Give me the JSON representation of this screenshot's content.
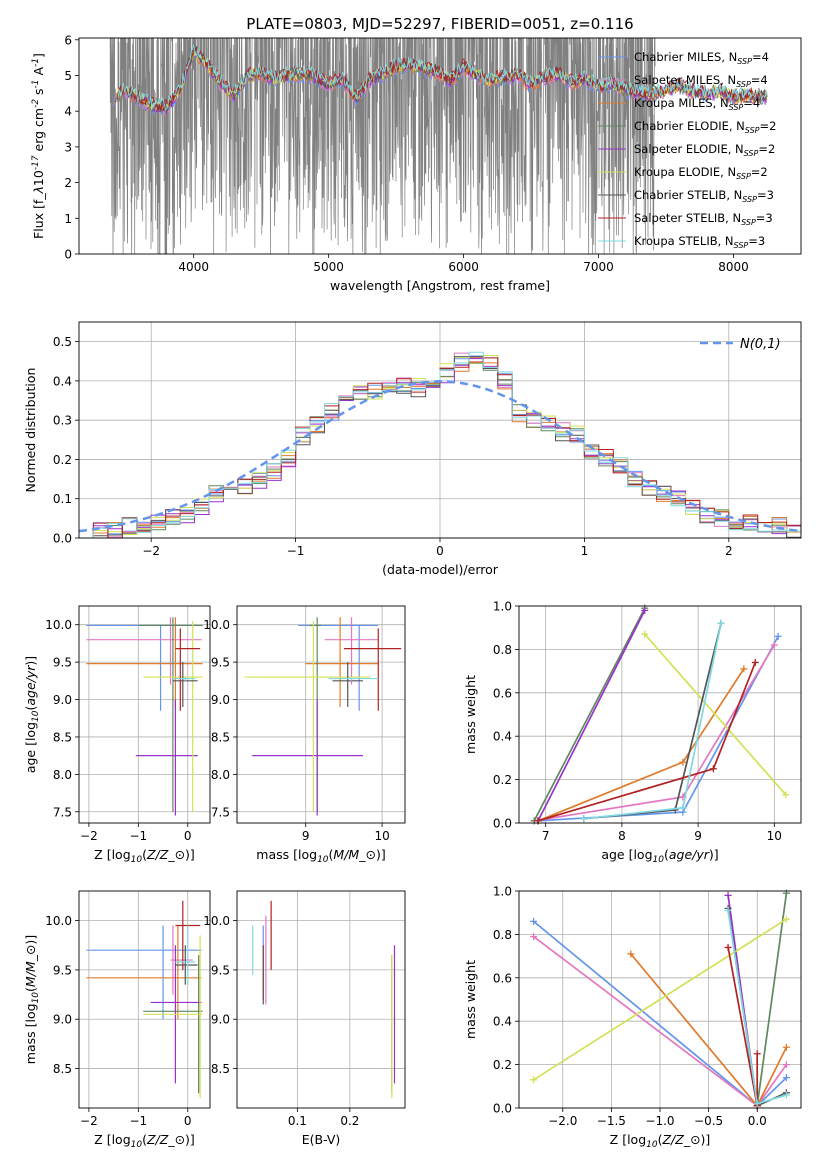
{
  "title": "PLATE=0803, MJD=52297, FIBERID=0051, z=0.116",
  "colors": {
    "grid": "#b0b0b0",
    "observed": "#808080",
    "models": [
      "#6495ed",
      "#e377c2",
      "#e07b2c",
      "#5f8a5f",
      "#9932cc",
      "#d4e157",
      "#555555",
      "#b22222",
      "#80d8e0"
    ]
  },
  "models": [
    {
      "label": "Chabrier MILES, N$_{SSP}$=4",
      "lib": "MILES",
      "imf": "Chabrier"
    },
    {
      "label": "Salpeter MILES, N$_{SSP}$=4",
      "lib": "MILES",
      "imf": "Salpeter"
    },
    {
      "label": "Kroupa MILES, N$_{SSP}$=4",
      "lib": "MILES",
      "imf": "Kroupa"
    },
    {
      "label": "Chabrier ELODIE, N$_{SSP}$=2",
      "lib": "ELODIE",
      "imf": "Chabrier"
    },
    {
      "label": "Salpeter ELODIE, N$_{SSP}$=2",
      "lib": "ELODIE",
      "imf": "Salpeter"
    },
    {
      "label": "Kroupa ELODIE, N$_{SSP}$=2",
      "lib": "ELODIE",
      "imf": "Kroupa"
    },
    {
      "label": "Chabrier STELIB, N$_{SSP}$=3",
      "lib": "STELIB",
      "imf": "Chabrier"
    },
    {
      "label": "Salpeter STELIB, N$_{SSP}$=3",
      "lib": "STELIB",
      "imf": "Salpeter"
    },
    {
      "label": "Kroupa STELIB, N$_{SSP}$=3",
      "lib": "STELIB",
      "imf": "Kroupa"
    }
  ],
  "chart_data": [
    {
      "id": "spectrum",
      "type": "line",
      "xlabel": "wavelength [Angstrom, rest frame]",
      "ylabel": "Flux [f$_\\lambda$10$^{-17}$ erg cm$^{-2}$ s$^{-1}$ A$^{-1}$]",
      "xlim": [
        3150,
        8500
      ],
      "ylim": [
        0,
        6.05
      ],
      "xticks": [
        4000,
        5000,
        6000,
        7000,
        8000
      ],
      "yticks": [
        0,
        1,
        2,
        3,
        4,
        5,
        6
      ],
      "grid": false,
      "legend": "right",
      "observed_range": [
        3380,
        7420
      ],
      "model_range": [
        3400,
        8250
      ],
      "continuum": [
        [
          3400,
          4.4
        ],
        [
          3500,
          4.55
        ],
        [
          3600,
          4.35
        ],
        [
          3700,
          4.15
        ],
        [
          3800,
          4.1
        ],
        [
          3900,
          4.6
        ],
        [
          4000,
          5.7
        ],
        [
          4100,
          5.3
        ],
        [
          4200,
          4.8
        ],
        [
          4300,
          4.45
        ],
        [
          4400,
          5.0
        ],
        [
          4500,
          5.05
        ],
        [
          4600,
          4.9
        ],
        [
          4700,
          5.0
        ],
        [
          4800,
          5.05
        ],
        [
          4900,
          4.95
        ],
        [
          5000,
          4.75
        ],
        [
          5100,
          4.9
        ],
        [
          5200,
          4.35
        ],
        [
          5300,
          4.85
        ],
        [
          5400,
          5.05
        ],
        [
          5500,
          5.25
        ],
        [
          5600,
          5.3
        ],
        [
          5700,
          5.2
        ],
        [
          5800,
          5.1
        ],
        [
          5900,
          4.85
        ],
        [
          6000,
          5.25
        ],
        [
          6100,
          5.0
        ],
        [
          6200,
          4.85
        ],
        [
          6300,
          4.95
        ],
        [
          6400,
          5.0
        ],
        [
          6500,
          4.75
        ],
        [
          6600,
          4.95
        ],
        [
          6700,
          5.05
        ],
        [
          6800,
          4.8
        ],
        [
          6900,
          4.9
        ],
        [
          7000,
          4.7
        ],
        [
          7100,
          4.75
        ],
        [
          7200,
          4.6
        ],
        [
          7300,
          4.5
        ],
        [
          7400,
          4.45
        ],
        [
          7500,
          4.6
        ],
        [
          7600,
          4.7
        ],
        [
          7700,
          4.55
        ],
        [
          7800,
          4.5
        ],
        [
          7900,
          4.55
        ],
        [
          8000,
          4.4
        ],
        [
          8100,
          4.45
        ],
        [
          8250,
          4.4
        ]
      ]
    },
    {
      "id": "residuals",
      "type": "line",
      "xlabel": "(data-model)/error",
      "ylabel": "Normed distribution",
      "xlim": [
        -2.5,
        2.5
      ],
      "ylim": [
        0,
        0.55
      ],
      "xticks": [
        -2,
        -1,
        0,
        1,
        2
      ],
      "yticks": [
        0.0,
        0.1,
        0.2,
        0.3,
        0.4,
        0.5
      ],
      "grid": true,
      "legend": "top-right",
      "legend_entry": "$\\mathcal{N}(0,1)$",
      "bins": [
        -2.5,
        -2.4,
        -2.3,
        -2.2,
        -2.1,
        -2.0,
        -1.9,
        -1.8,
        -1.7,
        -1.6,
        -1.5,
        -1.4,
        -1.3,
        -1.2,
        -1.1,
        -1.0,
        -0.9,
        -0.8,
        -0.7,
        -0.6,
        -0.5,
        -0.4,
        -0.3,
        -0.2,
        -0.1,
        0.0,
        0.1,
        0.2,
        0.3,
        0.4,
        0.5,
        0.6,
        0.7,
        0.8,
        0.9,
        1.0,
        1.1,
        1.2,
        1.3,
        1.4,
        1.5,
        1.6,
        1.7,
        1.8,
        1.9,
        2.0,
        2.1,
        2.2,
        2.3,
        2.4,
        2.5
      ],
      "histogram": [
        0.01,
        0.02,
        0.02,
        0.03,
        0.03,
        0.04,
        0.05,
        0.06,
        0.08,
        0.11,
        0.12,
        0.13,
        0.15,
        0.17,
        0.2,
        0.26,
        0.29,
        0.32,
        0.35,
        0.37,
        0.37,
        0.38,
        0.39,
        0.38,
        0.37,
        0.42,
        0.45,
        0.46,
        0.44,
        0.4,
        0.32,
        0.3,
        0.29,
        0.27,
        0.26,
        0.22,
        0.2,
        0.18,
        0.15,
        0.13,
        0.11,
        0.1,
        0.08,
        0.06,
        0.05,
        0.04,
        0.04,
        0.03,
        0.03,
        0.02
      ]
    },
    {
      "id": "age_vs_Z",
      "type": "scatter",
      "xlabel": "Z [log$_{10}$($Z/Z_\\odot$)]",
      "ylabel": "age  [log$_{10}$($age/yr$)]",
      "xlim": [
        -2.2,
        0.45
      ],
      "ylim": [
        7.35,
        10.25
      ],
      "xticks": [
        -2,
        -1,
        0
      ],
      "yticks": [
        7.5,
        8.0,
        8.5,
        9.0,
        9.5,
        10.0
      ],
      "grid": true,
      "points": [
        {
          "m": 0,
          "x": -0.55,
          "y": 9.99,
          "xe": [
            -2.05,
            0.3
          ],
          "ye": [
            8.85,
            10.0
          ]
        },
        {
          "m": 1,
          "x": -0.35,
          "y": 9.8,
          "xe": [
            -2.05,
            0.28
          ],
          "ye": [
            9.2,
            10.1
          ]
        },
        {
          "m": 2,
          "x": -0.25,
          "y": 9.48,
          "xe": [
            -2.05,
            0.3
          ],
          "ye": [
            8.9,
            10.1
          ]
        },
        {
          "m": 3,
          "x": -0.3,
          "y": 9.99,
          "xe": [
            -1.0,
            0.3
          ],
          "ye": [
            7.5,
            10.1
          ]
        },
        {
          "m": 4,
          "x": -0.25,
          "y": 8.25,
          "xe": [
            -1.05,
            0.2
          ],
          "ye": [
            7.45,
            9.0
          ]
        },
        {
          "m": 5,
          "x": 0.1,
          "y": 9.3,
          "xe": [
            -0.9,
            0.3
          ],
          "ye": [
            7.5,
            10.05
          ]
        },
        {
          "m": 6,
          "x": -0.1,
          "y": 9.25,
          "xe": [
            -0.3,
            0.2
          ],
          "ye": [
            8.9,
            9.5
          ]
        },
        {
          "m": 7,
          "x": -0.15,
          "y": 9.68,
          "xe": [
            -0.25,
            0.25
          ],
          "ye": [
            8.85,
            9.95
          ]
        },
        {
          "m": 8,
          "x": -0.05,
          "y": 9.28,
          "xe": [
            -0.3,
            0.15
          ],
          "ye": [
            9.25,
            9.3
          ]
        }
      ]
    },
    {
      "id": "age_vs_mass",
      "type": "scatter",
      "xlabel": "mass [log$_{10}$($M/M_\\odot$)]",
      "ylabel": "",
      "xlim": [
        8.1,
        10.3
      ],
      "ylim": [
        7.35,
        10.25
      ],
      "xticks": [
        9,
        10
      ],
      "yticks": [
        7.5,
        8.0,
        8.5,
        9.0,
        9.5,
        10.0
      ],
      "grid": true,
      "points": [
        {
          "m": 0,
          "x": 9.7,
          "y": 9.99,
          "xe": [
            8.9,
            9.95
          ],
          "ye": [
            8.85,
            10.0
          ]
        },
        {
          "m": 1,
          "x": 9.6,
          "y": 9.8,
          "xe": [
            9.25,
            9.95
          ],
          "ye": [
            9.2,
            10.1
          ]
        },
        {
          "m": 2,
          "x": 9.45,
          "y": 9.48,
          "xe": [
            9.0,
            9.95
          ],
          "ye": [
            8.9,
            10.1
          ]
        },
        {
          "m": 3,
          "x": 9.15,
          "y": 9.99,
          "xe": [
            9.05,
            9.2
          ],
          "ye": [
            7.5,
            10.1
          ]
        },
        {
          "m": 4,
          "x": 9.15,
          "y": 8.25,
          "xe": [
            8.3,
            9.75
          ],
          "ye": [
            7.45,
            9.0
          ]
        },
        {
          "m": 5,
          "x": 9.1,
          "y": 9.3,
          "xe": [
            8.2,
            9.85
          ],
          "ye": [
            7.5,
            10.05
          ]
        },
        {
          "m": 6,
          "x": 9.55,
          "y": 9.25,
          "xe": [
            9.35,
            9.75
          ],
          "ye": [
            8.9,
            9.5
          ]
        },
        {
          "m": 7,
          "x": 9.95,
          "y": 9.68,
          "xe": [
            9.5,
            10.25
          ],
          "ye": [
            8.85,
            9.95
          ]
        },
        {
          "m": 8,
          "x": 9.6,
          "y": 9.28,
          "xe": [
            9.3,
            9.95
          ],
          "ye": [
            9.25,
            9.3
          ]
        }
      ]
    },
    {
      "id": "mw_vs_age",
      "type": "line",
      "xlabel": "age  [log$_{10}$($age/yr$)]",
      "ylabel": "mass weight",
      "xlim": [
        6.65,
        10.35
      ],
      "ylim": [
        0.0,
        1.0
      ],
      "xticks": [
        7,
        8,
        9,
        10
      ],
      "yticks": [
        0.0,
        0.2,
        0.4,
        0.6,
        0.8,
        1.0
      ],
      "grid": true,
      "series": [
        {
          "m": 0,
          "x": [
            6.9,
            8.8,
            10.05
          ],
          "y": [
            0.01,
            0.05,
            0.86
          ]
        },
        {
          "m": 1,
          "x": [
            6.85,
            8.8,
            10.0
          ],
          "y": [
            0.01,
            0.12,
            0.82
          ]
        },
        {
          "m": 2,
          "x": [
            6.9,
            8.8,
            9.6
          ],
          "y": [
            0.01,
            0.28,
            0.71
          ]
        },
        {
          "m": 3,
          "x": [
            6.85,
            8.3
          ],
          "y": [
            0.01,
            0.99
          ]
        },
        {
          "m": 4,
          "x": [
            6.9,
            8.3
          ],
          "y": [
            0.01,
            0.98
          ]
        },
        {
          "m": 5,
          "x": [
            8.3,
            10.15
          ],
          "y": [
            0.87,
            0.13
          ]
        },
        {
          "m": 6,
          "x": [
            7.5,
            8.7,
            9.3
          ],
          "y": [
            0.02,
            0.06,
            0.92
          ]
        },
        {
          "m": 7,
          "x": [
            6.9,
            9.2,
            9.75
          ],
          "y": [
            0.01,
            0.25,
            0.74
          ]
        },
        {
          "m": 8,
          "x": [
            7.5,
            8.8,
            9.3
          ],
          "y": [
            0.02,
            0.07,
            0.92
          ]
        }
      ]
    },
    {
      "id": "mass_vs_Z",
      "type": "scatter",
      "xlabel": "Z [log$_{10}$($Z/Z_\\odot$)]",
      "ylabel": "mass [log$_{10}$($M/M_\\odot$)]",
      "xlim": [
        -2.2,
        0.45
      ],
      "ylim": [
        8.1,
        10.3
      ],
      "xticks": [
        -2,
        -1,
        0
      ],
      "yticks": [
        8.5,
        9.0,
        9.5,
        10.0
      ],
      "grid": true,
      "points": [
        {
          "m": 0,
          "x": -0.5,
          "y": 9.7,
          "xe": [
            -2.05,
            0.28
          ],
          "ye": [
            9.0,
            9.95
          ]
        },
        {
          "m": 1,
          "x": -0.3,
          "y": 9.6,
          "xe": [
            -0.35,
            0.1
          ],
          "ye": [
            9.25,
            9.95
          ]
        },
        {
          "m": 2,
          "x": -0.2,
          "y": 9.42,
          "xe": [
            -2.05,
            0.28
          ],
          "ye": [
            9.0,
            9.95
          ]
        },
        {
          "m": 3,
          "x": 0.22,
          "y": 9.08,
          "xe": [
            -0.9,
            0.3
          ],
          "ye": [
            8.25,
            9.65
          ]
        },
        {
          "m": 4,
          "x": -0.25,
          "y": 9.17,
          "xe": [
            -0.75,
            0.28
          ],
          "ye": [
            8.35,
            9.75
          ]
        },
        {
          "m": 5,
          "x": 0.25,
          "y": 9.05,
          "xe": [
            -0.9,
            0.3
          ],
          "ye": [
            8.2,
            9.85
          ]
        },
        {
          "m": 6,
          "x": -0.05,
          "y": 9.55,
          "xe": [
            -0.25,
            0.2
          ],
          "ye": [
            9.35,
            9.75
          ]
        },
        {
          "m": 7,
          "x": -0.1,
          "y": 9.95,
          "xe": [
            -0.25,
            0.25
          ],
          "ye": [
            9.5,
            10.2
          ]
        },
        {
          "m": 8,
          "x": 0.0,
          "y": 9.58,
          "xe": [
            -0.25,
            0.15
          ],
          "ye": [
            9.35,
            9.95
          ]
        }
      ]
    },
    {
      "id": "mass_vs_EBV",
      "type": "scatter",
      "xlabel": "E(B-V)",
      "ylabel": "",
      "xlim": [
        -0.015,
        0.305
      ],
      "ylim": [
        8.1,
        10.3
      ],
      "xticks": [
        0.1,
        0.2
      ],
      "yticks": [
        8.5,
        9.0,
        9.5,
        10.0
      ],
      "grid": true,
      "points": [
        {
          "m": 0,
          "x": 0.035,
          "y": 9.7,
          "ye": [
            9.2,
            9.95
          ]
        },
        {
          "m": 1,
          "x": 0.04,
          "y": 9.6,
          "ye": [
            9.15,
            10.05
          ]
        },
        {
          "m": 2,
          "x": 0.035,
          "y": 9.42,
          "ye": [
            9.2,
            9.75
          ]
        },
        {
          "m": 3,
          "x": 0.28,
          "y": 9.08,
          "ye": [
            8.25,
            9.65
          ]
        },
        {
          "m": 4,
          "x": 0.285,
          "y": 9.17,
          "ye": [
            8.35,
            9.75
          ]
        },
        {
          "m": 5,
          "x": 0.28,
          "y": 9.05,
          "ye": [
            8.2,
            9.65
          ]
        },
        {
          "m": 6,
          "x": 0.035,
          "y": 9.45,
          "ye": [
            9.15,
            9.75
          ]
        },
        {
          "m": 7,
          "x": 0.05,
          "y": 9.95,
          "ye": [
            9.5,
            10.2
          ]
        },
        {
          "m": 8,
          "x": 0.015,
          "y": 9.58,
          "ye": [
            9.45,
            9.95
          ]
        }
      ]
    },
    {
      "id": "mw_vs_Z",
      "type": "line",
      "xlabel": "Z [log$_{10}$($Z/Z_\\odot$)]",
      "ylabel": "mass weight",
      "xlim": [
        -2.45,
        0.45
      ],
      "ylim": [
        0.0,
        1.0
      ],
      "xticks": [
        -2.0,
        -1.5,
        -1.0,
        -0.5,
        0.0
      ],
      "yticks": [
        0.0,
        0.2,
        0.4,
        0.6,
        0.8,
        1.0
      ],
      "grid": true,
      "series": [
        {
          "m": 0,
          "x": [
            -2.3,
            0.0,
            0.3
          ],
          "y": [
            0.86,
            0.01,
            0.14
          ]
        },
        {
          "m": 1,
          "x": [
            -2.3,
            0.0,
            0.3
          ],
          "y": [
            0.79,
            0.01,
            0.2
          ]
        },
        {
          "m": 2,
          "x": [
            -1.3,
            0.0,
            0.3
          ],
          "y": [
            0.71,
            0.01,
            0.28
          ]
        },
        {
          "m": 3,
          "x": [
            0.0,
            0.3
          ],
          "y": [
            0.01,
            0.99
          ]
        },
        {
          "m": 4,
          "x": [
            -0.3,
            0.0
          ],
          "y": [
            0.98,
            0.01
          ]
        },
        {
          "m": 5,
          "x": [
            -2.3,
            0.3
          ],
          "y": [
            0.13,
            0.87
          ]
        },
        {
          "m": 6,
          "x": [
            -0.3,
            0.0,
            0.3
          ],
          "y": [
            0.92,
            0.01,
            0.07
          ]
        },
        {
          "m": 7,
          "x": [
            -0.3,
            0.0,
            0.0
          ],
          "y": [
            0.74,
            0.01,
            0.25
          ]
        },
        {
          "m": 8,
          "x": [
            -0.3,
            0.0,
            0.3
          ],
          "y": [
            0.91,
            0.02,
            0.06
          ]
        }
      ]
    }
  ]
}
